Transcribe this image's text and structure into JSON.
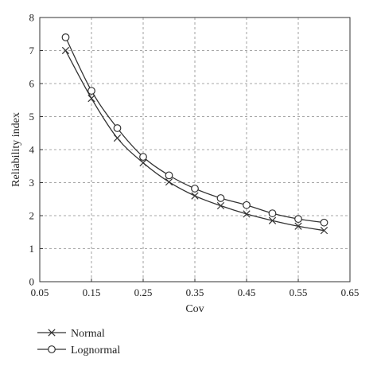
{
  "chart_data": {
    "type": "line",
    "title": "",
    "xlabel": "Cov",
    "ylabel": "Reliability index",
    "xlim": [
      0.05,
      0.65
    ],
    "ylim": [
      0,
      8
    ],
    "xticks": [
      "0.05",
      "0.15",
      "0.25",
      "0.35",
      "0.45",
      "0.55",
      "0.65"
    ],
    "xtick_values": [
      0.05,
      0.15,
      0.25,
      0.35,
      0.45,
      0.55,
      0.65
    ],
    "yticks": [
      "0",
      "1",
      "2",
      "3",
      "4",
      "5",
      "6",
      "7",
      "8"
    ],
    "ytick_values": [
      0,
      1,
      2,
      3,
      4,
      5,
      6,
      7,
      8
    ],
    "grid": true,
    "legend_position": "bottom-left, below plot",
    "x": [
      0.1,
      0.15,
      0.2,
      0.25,
      0.3,
      0.35,
      0.4,
      0.45,
      0.5,
      0.55,
      0.6
    ],
    "series": [
      {
        "name": "Normal",
        "marker": "x",
        "color": "#333333",
        "values": [
          7.0,
          5.55,
          4.35,
          3.6,
          3.02,
          2.6,
          2.3,
          2.05,
          1.85,
          1.68,
          1.55
        ]
      },
      {
        "name": "Lognormal",
        "marker": "circle",
        "color": "#333333",
        "values": [
          7.4,
          5.78,
          4.65,
          3.78,
          3.22,
          2.82,
          2.53,
          2.32,
          2.07,
          1.9,
          1.79
        ]
      }
    ]
  }
}
